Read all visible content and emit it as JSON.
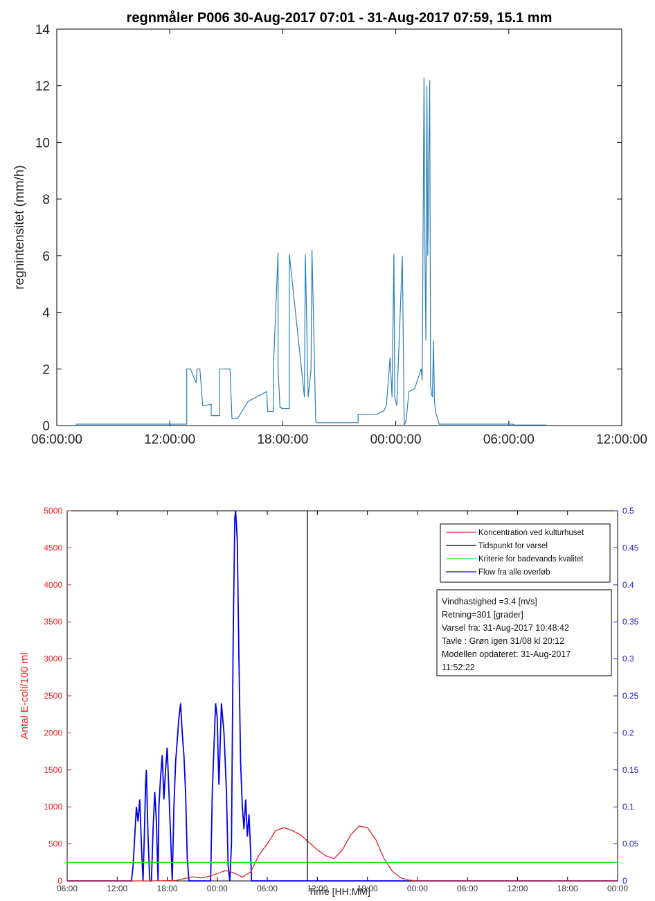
{
  "colors": {
    "rain_line": "#2a7db8",
    "ecoli": "#dd2222",
    "varsel": "#000000",
    "kriterie": "#22dd22",
    "flow": "#0000ee",
    "left_axis": "#ee2222",
    "right_axis": "#2222cc"
  },
  "chart_data": [
    {
      "type": "line",
      "title": "regnmåler P006 30-Aug-2017 07:01 - 31-Aug-2017 07:59, 15.1 mm",
      "xlabel": "",
      "ylabel": "regnintensitet (mm/h)",
      "xlim": [
        "06:00:00",
        "12:00:00 (+1d)"
      ],
      "ylim": [
        0,
        14
      ],
      "x_ticks": [
        "06:00:00",
        "12:00:00",
        "18:00:00",
        "00:00:00",
        "06:00:00",
        "12:00:00"
      ],
      "y_ticks": [
        "0",
        "2",
        "4",
        "6",
        "8",
        "10",
        "12",
        "14"
      ],
      "grid": false,
      "series": [
        {
          "x_hours": [
            7.0,
            12.9,
            12.9,
            13.1,
            13.4,
            13.45,
            13.6,
            13.75,
            13.8,
            14.2,
            14.2,
            14.65,
            14.65,
            15.2,
            15.3,
            15.35,
            15.55,
            15.6,
            16.15,
            16.15,
            17.15,
            17.2,
            17.5,
            17.5,
            17.75,
            17.75,
            17.85,
            17.9,
            17.95,
            18.35,
            18.35,
            19.15,
            19.2,
            19.35,
            19.5,
            19.55,
            19.75,
            19.8,
            19.95,
            20.0,
            20.15,
            20.2,
            22.0,
            22.0,
            23.0,
            23.3,
            23.35,
            23.5,
            23.7,
            23.8,
            23.9,
            23.95,
            24.05,
            24.35,
            24.45,
            24.55,
            24.7,
            25.0,
            25.35,
            25.4,
            25.5,
            25.55,
            25.6,
            25.65,
            25.7,
            25.8,
            25.85,
            25.9,
            25.95,
            26.0,
            26.05,
            26.1,
            26.2,
            26.3,
            26.4,
            26.5,
            26.55,
            26.75,
            26.8,
            30.2,
            30.3,
            32.0
          ],
          "y": [
            0.05,
            0.05,
            2.0,
            2.0,
            1.5,
            2.0,
            2.0,
            0.7,
            0.7,
            0.75,
            0.35,
            0.35,
            2.0,
            2.0,
            0.25,
            0.25,
            0.25,
            0.25,
            0.85,
            0.85,
            1.2,
            0.5,
            0.5,
            2.0,
            6.1,
            2.0,
            0.65,
            0.65,
            0.6,
            0.6,
            6.05,
            1.0,
            6.05,
            1.0,
            2.0,
            6.2,
            0.15,
            0.1,
            0.1,
            0.1,
            0.1,
            0.1,
            0.1,
            0.4,
            0.4,
            0.5,
            0.5,
            0.7,
            2.4,
            1.0,
            6.05,
            1.0,
            0.7,
            6.0,
            0.0,
            0.2,
            1.2,
            1.3,
            2.0,
            1.6,
            12.3,
            6.0,
            3.0,
            12.0,
            6.0,
            12.2,
            1.4,
            1.1,
            1.0,
            3.0,
            1.0,
            0.5,
            0.3,
            0.05,
            0.05,
            0.05,
            0.05,
            0.05,
            0.05,
            0.05,
            0.02,
            0.02
          ]
        }
      ]
    },
    {
      "type": "line",
      "title": "",
      "xlabel": "Time [HH:MM]",
      "ylabel_left": "Antal E-coli/100 ml",
      "ylabel_right": "",
      "xlim": [
        "06:00",
        "00:00 (+2d)"
      ],
      "ylim_left": [
        0,
        5000
      ],
      "ylim_right": [
        0,
        0.5
      ],
      "x_ticks": [
        "06:00",
        "12:00",
        "18:00",
        "00:00",
        "06:00",
        "12:00",
        "18:00",
        "00:00",
        "06:00",
        "12:00",
        "18:00",
        "00:00"
      ],
      "y_ticks_left": [
        "0",
        "500",
        "1000",
        "1500",
        "2000",
        "2500",
        "3000",
        "3500",
        "4000",
        "4500",
        "5000"
      ],
      "y_ticks_right": [
        "0",
        "0.05",
        "0.1",
        "0.15",
        "0.2",
        "0.25",
        "0.3",
        "0.35",
        "0.4",
        "0.45",
        "0.5"
      ],
      "legend_position": "top-right",
      "legend": [
        "Koncentration ved kulturhuset",
        "Tidspunkt for varsel",
        "Kriterie for badevands kvalitet",
        "Flow fra alle overløb"
      ],
      "varsel_time_hours": 34.8,
      "kriterie_value": 250,
      "series": [
        {
          "name": "Koncentration ved kulturhuset",
          "axis": "left",
          "x_hours": [
            6,
            16,
            19,
            20,
            21,
            22,
            23,
            24,
            25,
            26,
            27,
            28,
            29,
            30,
            31,
            32,
            33,
            34,
            35,
            36,
            37,
            38,
            39,
            40,
            41,
            42,
            43,
            44,
            45,
            46,
            47,
            48,
            54,
            60,
            66,
            72
          ],
          "y": [
            0,
            0,
            5,
            30,
            55,
            40,
            60,
            100,
            140,
            110,
            50,
            120,
            350,
            500,
            680,
            720,
            680,
            620,
            520,
            420,
            340,
            300,
            420,
            620,
            740,
            720,
            560,
            300,
            130,
            40,
            10,
            0,
            0,
            0,
            0,
            0
          ]
        },
        {
          "name": "Flow fra alle overløb",
          "axis": "right",
          "x_hours": [
            6,
            13.7,
            13.9,
            14.1,
            14.3,
            14.5,
            14.7,
            14.9,
            15.1,
            15.3,
            15.4,
            15.5,
            15.7,
            15.9,
            16.1,
            16.3,
            16.5,
            16.7,
            16.9,
            17.0,
            17.2,
            17.4,
            17.6,
            17.8,
            18.0,
            18.2,
            18.4,
            18.6,
            18.8,
            19.0,
            19.2,
            19.4,
            19.6,
            19.8,
            20.0,
            20.2,
            20.4,
            20.6,
            20.8,
            21.0,
            21.2,
            21.4,
            21.6,
            21.8,
            22.0,
            22.2,
            22.4,
            22.6,
            22.8,
            23.0,
            23.2,
            23.4,
            23.6,
            23.8,
            24.0,
            24.1,
            24.2,
            24.5,
            24.8,
            25.1,
            25.3,
            25.5,
            25.7,
            25.9,
            26.1,
            26.2,
            26.4,
            26.6,
            26.8,
            27.0,
            27.2,
            27.4,
            27.6,
            27.8,
            28.0,
            28.1,
            28.3,
            72
          ],
          "y": [
            0,
            0,
            0.02,
            0.06,
            0.1,
            0.08,
            0.11,
            0.05,
            0.0,
            0.08,
            0.13,
            0.15,
            0.06,
            0.0,
            0.0,
            0.07,
            0.12,
            0.08,
            0.0,
            0.1,
            0.14,
            0.17,
            0.11,
            0.15,
            0.18,
            0.12,
            0.06,
            0.0,
            0.1,
            0.16,
            0.19,
            0.22,
            0.24,
            0.2,
            0.17,
            0.12,
            0.03,
            0.0,
            0.0,
            0.0,
            0.0,
            0.0,
            0.0,
            0.0,
            0.0,
            0.0,
            0.0,
            0.0,
            0.0,
            0.0,
            0.0,
            0.12,
            0.18,
            0.24,
            0.22,
            0.17,
            0.13,
            0.24,
            0.2,
            0.12,
            0.02,
            0.0,
            0.05,
            0.32,
            0.49,
            0.5,
            0.46,
            0.3,
            0.16,
            0.1,
            0.07,
            0.11,
            0.06,
            0.09,
            0.04,
            0.0,
            0.0,
            0
          ]
        }
      ],
      "info_box": [
        "Vindhastighed =3.4 [m/s]",
        "Retning=301 [grader]",
        "Varsel fra: 31-Aug-2017 10:48:42",
        "Tavle : Grøn igen 31/08 kl 20:12",
        "Modellen opdateret: 31-Aug-2017",
        "11:52:22"
      ]
    }
  ]
}
